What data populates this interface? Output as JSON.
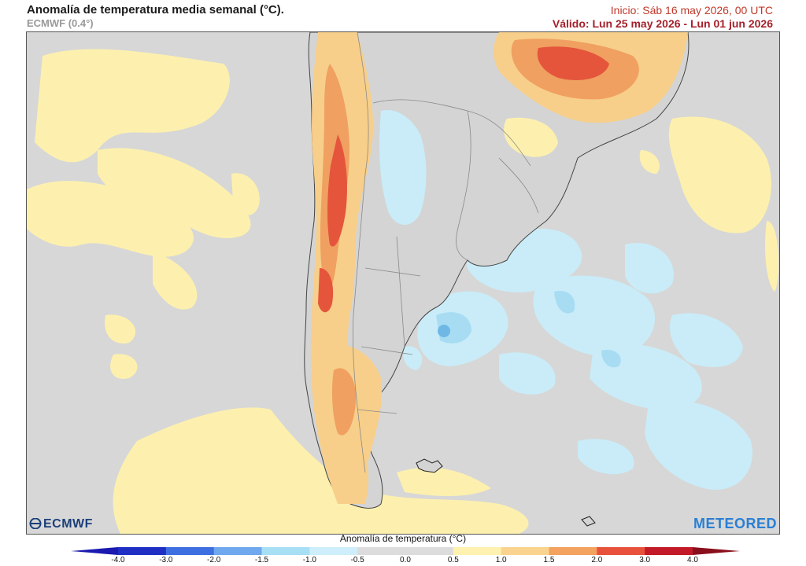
{
  "header": {
    "title": "Anomalía de temperatura media semanal (°C).",
    "model": "ECMWF (0.4°)",
    "init": "Inicio: Sáb 16 may 2026, 00 UTC",
    "valid": "Válido: Lun 25 may 2026 - Lun 01 jun 2026"
  },
  "logos": {
    "left": "ECMWF",
    "right": "METEORED"
  },
  "colorbar": {
    "title": "Anomalía de temperatura (°C)",
    "ticks": [
      "-4.0",
      "-3.0",
      "-2.0",
      "-1.5",
      "-1.0",
      "-0.5",
      "0.0",
      "0.5",
      "1.0",
      "1.5",
      "2.0",
      "3.0",
      "4.0"
    ],
    "colors": [
      "#1f2fc4",
      "#3e6fe0",
      "#6fa8ee",
      "#a7dff5",
      "#cdeefa",
      "#dcdcdc",
      "#dcdcdc",
      "#fff2b0",
      "#fad48f",
      "#f3a25f",
      "#e8523d",
      "#c21a28"
    ]
  },
  "map": {
    "region": "South America — Argentina / Chile / South Atlantic",
    "palette": {
      "neutral": "#dadada",
      "sea_neutral": "#d3d3d3",
      "warm1": "#fdf0ae",
      "warm2": "#f7cf8a",
      "warm3": "#f0a060",
      "warm4": "#e4553c",
      "cool1": "#c9ecf8",
      "cool2": "#a8dcf2",
      "cool3": "#6fb8e6",
      "land_outline": "#7a7a7a",
      "coast": "#222222"
    }
  }
}
